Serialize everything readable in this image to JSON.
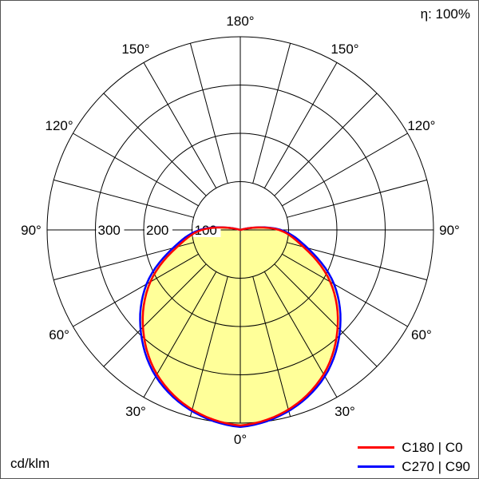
{
  "page": {
    "title": "Polar luminous intensity diagram"
  },
  "header": {
    "efficiency_label": "η: 100%"
  },
  "footer": {
    "unit_label": "cd/klm"
  },
  "legend": {
    "items": [
      {
        "label": "C180 | C0",
        "color": "#ff0000"
      },
      {
        "label": "C270 | C90",
        "color": "#0000ff"
      }
    ]
  },
  "chart_data": {
    "type": "polar",
    "subtype": "photometric-light-distribution",
    "unit": "cd/klm",
    "efficiency": "100%",
    "angle_tick_step_deg": 15,
    "angle_labels": [
      {
        "deg": 0,
        "label": "0°"
      },
      {
        "deg": 30,
        "label": "30°"
      },
      {
        "deg": 60,
        "label": "60°"
      },
      {
        "deg": 90,
        "label": "90°"
      },
      {
        "deg": 120,
        "label": "120°"
      },
      {
        "deg": 150,
        "label": "150°"
      },
      {
        "deg": 180,
        "label": "180°"
      }
    ],
    "radial_ticks": [
      100,
      200,
      300
    ],
    "radial_max": 400,
    "gamma_deg": [
      0,
      15,
      30,
      45,
      60,
      75,
      90,
      105,
      120,
      135,
      150,
      165,
      180
    ],
    "series": [
      {
        "key": "c180-c0",
        "name": "C180 | C0",
        "color": "#ff0000",
        "values": [
          405,
          385,
          345,
          285,
          215,
          135,
          80,
          5,
          0,
          0,
          0,
          0,
          0
        ]
      },
      {
        "key": "c270-c90",
        "name": "C270 | C90",
        "color": "#0000ff",
        "values": [
          408,
          388,
          350,
          292,
          224,
          144,
          84,
          5,
          0,
          0,
          0,
          0,
          0
        ]
      }
    ],
    "fill_color": "#ffff99",
    "grid_color": "#000000"
  }
}
